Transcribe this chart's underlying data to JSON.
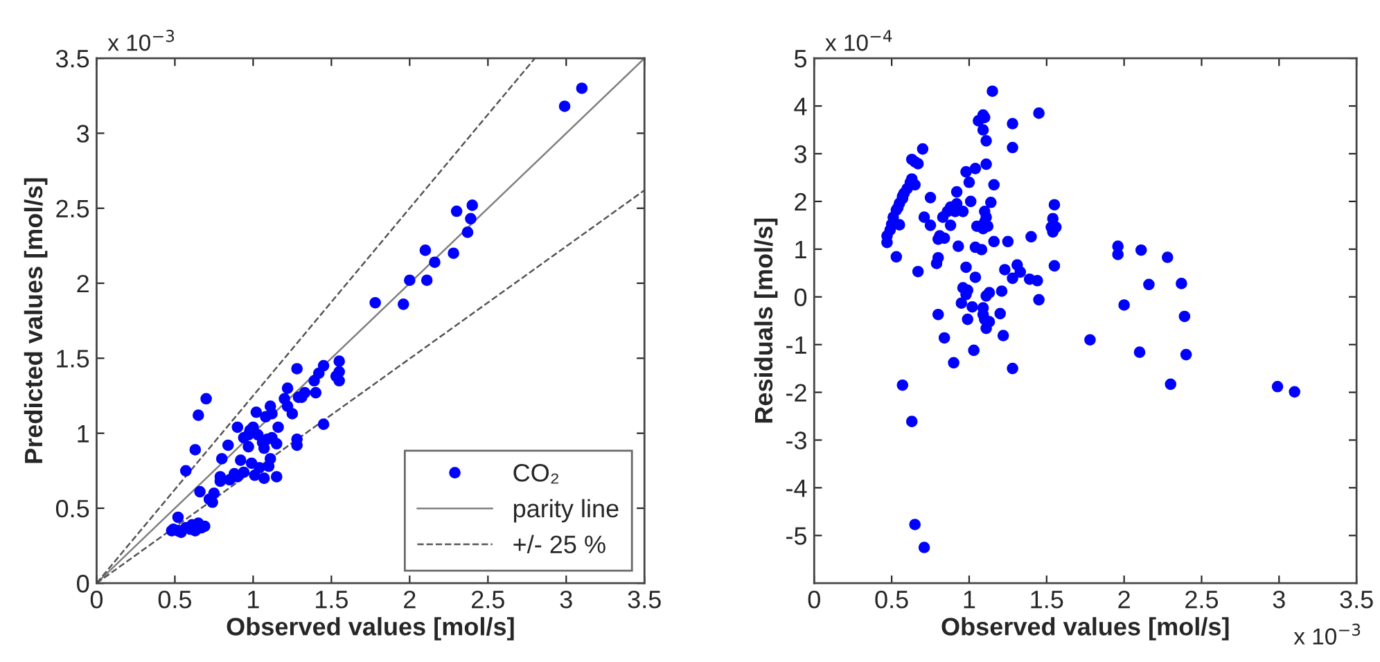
{
  "chart_data": [
    {
      "type": "scatter",
      "xlabel": "Observed values [mol/s]",
      "ylabel": "Predicted values [mol/s]",
      "xlim": [
        0,
        3.5
      ],
      "ylim": [
        0,
        3.5
      ],
      "xticks": [
        0,
        0.5,
        1,
        1.5,
        2,
        2.5,
        3,
        3.5
      ],
      "yticks": [
        0,
        0.5,
        1,
        1.5,
        2,
        2.5,
        3,
        3.5
      ],
      "grid": false,
      "legend": "bottom right",
      "annotations": [
        "x 10$^{−3}$"
      ],
      "series": [
        {
          "name": "CO₂",
          "color": "#0000ff",
          "marker": "circle",
          "x": [
            3.1,
            2.99,
            2.4,
            2.3,
            2.39,
            2.37,
            2.28,
            2.1,
            2.16,
            2.0,
            2.11,
            1.78,
            1.96,
            1.55,
            1.45,
            1.28,
            1.42,
            1.55,
            1.53,
            1.55,
            1.39,
            1.22,
            1.4,
            1.33,
            1.29,
            1.31,
            1.2,
            1.22,
            1.25,
            1.11,
            1.02,
            1.08,
            1.12,
            1.45,
            0.9,
            1.0,
            0.98,
            1.16,
            1.28,
            1.28,
            0.94,
            0.97,
            1.03,
            1.06,
            1.09,
            1.12,
            1.15,
            0.84,
            0.97,
            1.07,
            0.8,
            0.92,
            0.99,
            1.11,
            1.04,
            1.1,
            0.79,
            0.88,
            0.94,
            1.01,
            0.79,
            0.85,
            0.9,
            1.15,
            1.07,
            0.65,
            0.7,
            0.63,
            0.57,
            0.66,
            0.75,
            0.72,
            0.74,
            0.52,
            0.48,
            0.52,
            0.57,
            0.61,
            0.65,
            0.69,
            0.49,
            0.54,
            0.6,
            0.63,
            0.67
          ],
          "values": [
            3.3,
            3.18,
            2.52,
            2.48,
            2.43,
            2.34,
            2.2,
            2.22,
            2.14,
            2.02,
            2.02,
            1.87,
            1.86,
            1.48,
            1.45,
            1.43,
            1.4,
            1.41,
            1.38,
            1.35,
            1.35,
            1.3,
            1.27,
            1.27,
            1.24,
            1.24,
            1.23,
            1.18,
            1.13,
            1.18,
            1.14,
            1.11,
            1.13,
            1.06,
            1.04,
            1.04,
            1.02,
            1.04,
            0.96,
            0.92,
            0.97,
            0.99,
            0.99,
            0.94,
            0.96,
            0.97,
            0.93,
            0.92,
            0.91,
            0.9,
            0.83,
            0.82,
            0.8,
            0.83,
            0.77,
            0.78,
            0.71,
            0.73,
            0.74,
            0.72,
            0.68,
            0.69,
            0.71,
            0.71,
            0.7,
            1.12,
            1.23,
            0.89,
            0.75,
            0.61,
            0.6,
            0.56,
            0.54,
            0.44,
            0.35,
            0.35,
            0.37,
            0.39,
            0.4,
            0.38,
            0.36,
            0.34,
            0.36,
            0.35,
            0.37
          ]
        },
        {
          "name": "parity line",
          "color": "#808080",
          "type": "line",
          "line_style": "solid",
          "x": [
            0,
            3.5
          ],
          "values": [
            0,
            3.5
          ]
        },
        {
          "name": "+/- 25 %",
          "color": "#555555",
          "type": "line",
          "line_style": "dashed",
          "x": [
            0,
            2.8
          ],
          "values": [
            0,
            3.5
          ]
        },
        {
          "color": "#555555",
          "type": "line",
          "line_style": "dashed",
          "x": [
            0,
            3.5
          ],
          "values": [
            0,
            2.62
          ]
        }
      ]
    },
    {
      "type": "scatter",
      "xlabel": "Observed values [mol/s]",
      "ylabel": "Residuals [mol/s]",
      "xlim": [
        0,
        3.5
      ],
      "ylim": [
        -6,
        5
      ],
      "xticks": [
        0,
        0.5,
        1,
        1.5,
        2,
        2.5,
        3,
        3.5
      ],
      "yticks": [
        -5,
        -4,
        -3,
        -2,
        -1,
        0,
        1,
        2,
        3,
        4,
        5
      ],
      "grid": false,
      "annotations": [
        "x 10$^{−4}$",
        "x 10$^{−3}$"
      ],
      "series": [
        {
          "color": "#0000ff",
          "marker": "circle",
          "x": [
            1.15,
            1.45,
            1.09,
            1.1,
            1.06,
            1.09,
            1.28,
            1.11,
            1.28,
            0.7,
            0.63,
            0.65,
            0.67,
            1.11,
            0.98,
            1.04,
            0.63,
            0.62,
            0.65,
            1.0,
            1.16,
            0.6,
            0.58,
            0.57,
            0.57,
            0.92,
            0.75,
            0.55,
            0.54,
            1.55,
            1.01,
            1.14,
            0.92,
            0.88,
            0.86,
            0.91,
            0.96,
            1.1,
            1.11,
            1.1,
            1.12,
            0.71,
            0.83,
            1.54,
            0.53,
            0.51,
            0.5,
            0.49,
            0.47,
            0.47,
            0.55,
            0.75,
            0.88,
            1.05,
            1.09,
            1.53,
            1.56,
            1.54,
            0.81,
            0.84,
            0.8,
            1.4,
            1.16,
            1.25,
            0.93,
            1.96,
            1.96,
            1.04,
            1.08,
            2.11,
            0.53,
            2.28,
            0.8,
            0.79,
            1.55,
            0.98,
            1.23,
            1.31,
            1.33,
            0.67,
            1.04,
            1.28,
            1.39,
            1.44,
            2.16,
            2.37,
            0.96,
            0.99,
            0.98,
            1.13,
            1.11,
            1.21,
            1.45,
            0.95,
            2.0,
            1.02,
            1.09,
            1.09,
            1.1,
            1.13,
            1.11,
            0.99,
            1.2,
            0.8,
            2.39,
            1.22,
            0.84,
            1.78,
            1.03,
            2.1,
            2.4,
            0.9,
            1.28,
            2.3,
            0.57,
            2.99,
            3.1,
            0.63,
            0.65,
            0.71
          ],
          "values": [
            4.31,
            3.85,
            3.81,
            3.76,
            3.69,
            3.5,
            3.63,
            3.27,
            3.13,
            3.1,
            2.88,
            2.83,
            2.79,
            2.78,
            2.62,
            2.69,
            2.47,
            2.4,
            2.35,
            2.4,
            2.35,
            2.27,
            2.17,
            2.06,
            2.11,
            2.2,
            2.08,
            1.96,
            1.87,
            1.93,
            2.0,
            1.98,
            1.95,
            1.88,
            1.79,
            1.79,
            1.79,
            1.79,
            1.67,
            1.57,
            1.48,
            1.67,
            1.67,
            1.64,
            1.82,
            1.67,
            1.52,
            1.4,
            1.28,
            1.14,
            1.51,
            1.5,
            1.5,
            1.48,
            1.43,
            1.46,
            1.46,
            1.36,
            1.28,
            1.23,
            1.21,
            1.26,
            1.16,
            1.16,
            1.06,
            1.06,
            0.89,
            1.04,
            0.99,
            0.98,
            0.84,
            0.83,
            0.82,
            0.7,
            0.65,
            0.62,
            0.57,
            0.67,
            0.52,
            0.53,
            0.41,
            0.39,
            0.37,
            0.34,
            0.26,
            0.28,
            0.19,
            0.14,
            0.05,
            0.09,
            0.02,
            0.12,
            -0.06,
            -0.13,
            -0.17,
            -0.21,
            -0.23,
            -0.37,
            -0.47,
            -0.52,
            -0.66,
            -0.47,
            -0.35,
            -0.37,
            -0.41,
            -0.81,
            -0.86,
            -0.9,
            -1.12,
            -1.16,
            -1.21,
            -1.38,
            -1.5,
            -1.83,
            -1.85,
            -1.88,
            -1.99,
            -2.61,
            -4.77,
            -5.25
          ]
        }
      ]
    }
  ]
}
